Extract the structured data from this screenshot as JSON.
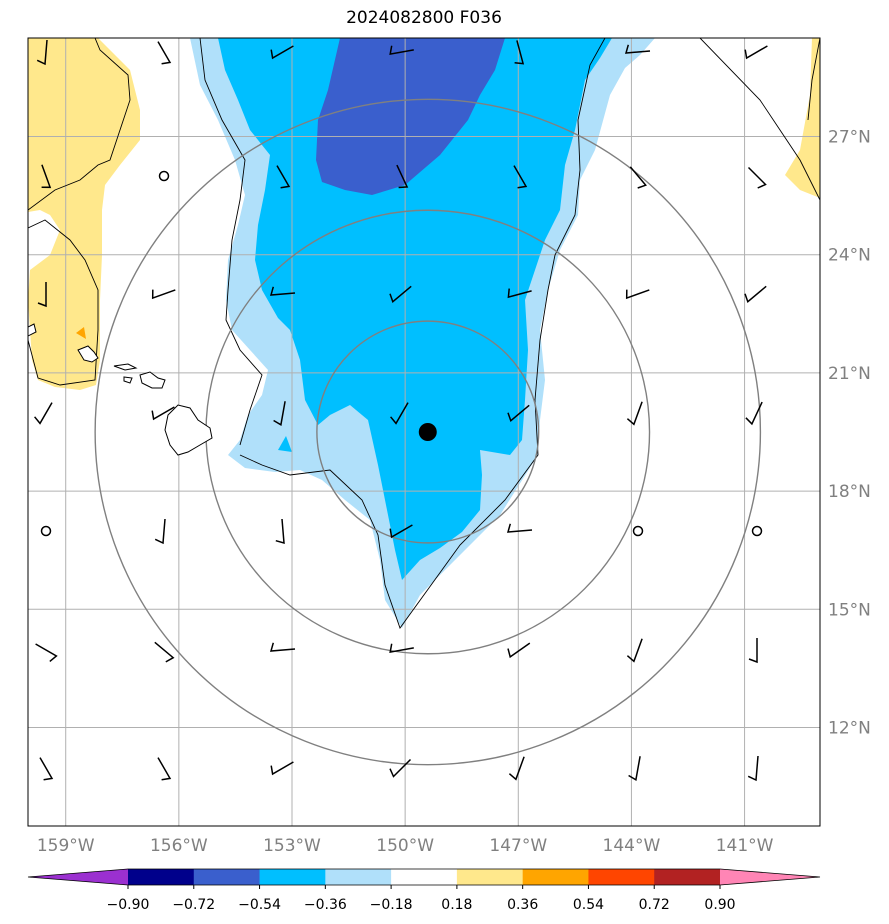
{
  "title": "2024082800 F036",
  "map": {
    "lon_range": [
      -160,
      -139
    ],
    "lat_range": [
      9.5,
      29.5
    ],
    "lon_ticks": [
      -159,
      -156,
      -153,
      -150,
      -147,
      -144,
      -141
    ],
    "lon_tick_labels": [
      "159°W",
      "156°W",
      "153°W",
      "150°W",
      "147°W",
      "144°W",
      "141°W"
    ],
    "lat_ticks": [
      27,
      24,
      21,
      18,
      15,
      12
    ],
    "lat_tick_labels": [
      "27°N",
      "24°N",
      "21°N",
      "18°N",
      "15°N",
      "12°N"
    ],
    "grid": true,
    "storm_center": {
      "lon": -149.4,
      "lat": 19.5
    },
    "range_ring_radii_deg": [
      3,
      6,
      9
    ]
  },
  "colorbar": {
    "levels": [
      "−0.90",
      "−0.72",
      "−0.54",
      "−0.36",
      "−0.18",
      "0.18",
      "0.36",
      "0.54",
      "0.72",
      "0.90"
    ],
    "colors": [
      "#9b30d0",
      "#00008b",
      "#3a5fcd",
      "#00bfff",
      "#b0e0fa",
      "#ffffff",
      "#ffe88c",
      "#ffa500",
      "#ff4500",
      "#b22222",
      "#ff85b5"
    ]
  },
  "colors": {
    "grid": "#b0b0b0",
    "rings": "#808080",
    "coast": "#000000",
    "storm": "#000000",
    "marker": "#ffa500"
  }
}
